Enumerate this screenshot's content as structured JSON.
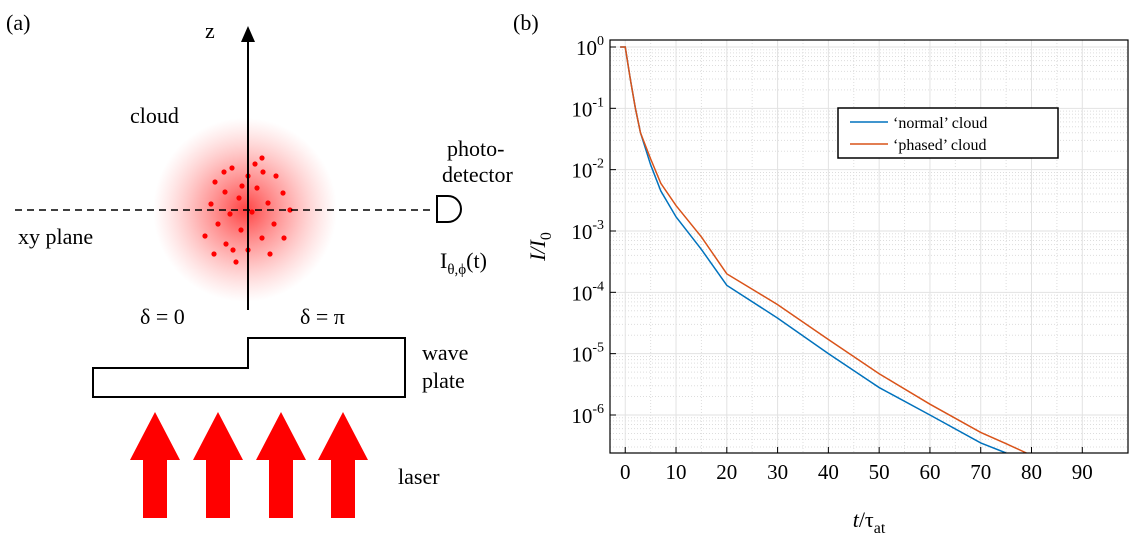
{
  "panels": {
    "a": "(a)",
    "b": "(b)"
  },
  "diagram": {
    "z_axis": "z",
    "cloud": "cloud",
    "detector_line1": "photo-",
    "detector_line2": "detector",
    "plane": "xy plane",
    "signal": {
      "main": "I",
      "sub": "θ,ϕ",
      "tail": "(t)"
    },
    "phase_left": "δ = 0",
    "phase_right": "δ = π",
    "plate_line1": "wave",
    "plate_line2": "plate",
    "laser": "laser"
  },
  "chart_data": {
    "type": "line",
    "log_y": true,
    "grid": true,
    "minor_grid": true,
    "legend": "upper-right",
    "xlabel": {
      "main": "t",
      "rest": "/τ",
      "sub": "at"
    },
    "ylabel": {
      "main": "I",
      "rest": "/I",
      "sub": "0"
    },
    "x": [
      -1,
      0,
      1,
      2,
      3,
      5,
      7,
      10,
      15,
      20,
      30,
      40,
      50,
      60,
      70,
      75,
      79
    ],
    "series": [
      {
        "name": "‘normal’ cloud",
        "color": "#0072bd",
        "values": [
          1,
          1,
          0.3,
          0.1,
          0.04,
          0.012,
          0.0045,
          0.0017,
          0.0005,
          0.00013,
          3.8e-05,
          1e-05,
          2.8e-06,
          1e-06,
          3.5e-07,
          2.4e-07,
          null
        ]
      },
      {
        "name": "‘phased’ cloud",
        "color": "#d95319",
        "values": [
          1,
          1,
          0.3,
          0.1,
          0.04,
          0.015,
          0.006,
          0.0026,
          0.0008,
          0.0002,
          6.3e-05,
          1.7e-05,
          4.7e-06,
          1.5e-06,
          5.2e-07,
          3.4e-07,
          2.4e-07
        ]
      }
    ],
    "xlim": [
      -3,
      99
    ],
    "xticks": [
      0,
      10,
      20,
      30,
      40,
      50,
      60,
      70,
      80,
      90
    ],
    "ylim": [
      2.4e-07,
      1.3
    ],
    "yticks": [
      {
        "value": 1,
        "label": "10",
        "power": "0"
      },
      {
        "value": 0.1,
        "label": "10",
        "power": "-1"
      },
      {
        "value": 0.01,
        "label": "10",
        "power": "-2"
      },
      {
        "value": 0.001,
        "label": "10",
        "power": "-3"
      },
      {
        "value": 0.0001,
        "label": "10",
        "power": "-4"
      },
      {
        "value": 1e-05,
        "label": "10",
        "power": "-5"
      },
      {
        "value": 1e-06,
        "label": "10",
        "power": "-6"
      }
    ]
  }
}
